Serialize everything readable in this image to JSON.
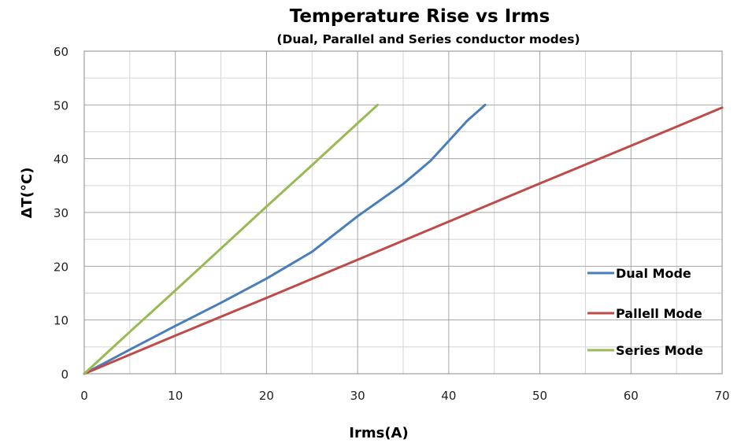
{
  "chart_data": {
    "type": "line",
    "title": "Temperature Rise vs Irms",
    "subtitle": "(Dual, Parallel and Series conductor modes)",
    "xlabel": "Irms(A)",
    "ylabel": "ΔT(°C)",
    "xlim": [
      0,
      70
    ],
    "ylim": [
      0,
      60
    ],
    "x_ticks": [
      0,
      10,
      20,
      30,
      40,
      50,
      60,
      70
    ],
    "y_ticks": [
      0,
      10,
      20,
      30,
      40,
      50,
      60
    ],
    "x_tick_labels": [
      "0",
      "10",
      "20",
      "30",
      "40",
      "50",
      "60",
      "70"
    ],
    "y_tick_labels": [
      "0",
      "10",
      "20",
      "30",
      "40",
      "50",
      "60"
    ],
    "grid": true,
    "minor_grid": true,
    "legend_position": "right",
    "series": [
      {
        "name": "Dual Mode",
        "color": "#4a7ebb",
        "x": [
          0,
          5,
          10,
          15,
          20,
          25,
          30,
          35,
          38,
          40,
          42,
          44
        ],
        "y": [
          0,
          4.5,
          8.9,
          13.2,
          17.7,
          22.7,
          29.3,
          35.3,
          39.6,
          43.3,
          47.0,
          50.0
        ]
      },
      {
        "name": "Pallell Mode",
        "color": "#be4b48",
        "x": [
          0,
          10,
          20,
          30,
          40,
          50,
          60,
          70
        ],
        "y": [
          0,
          7.1,
          14.1,
          21.2,
          28.3,
          35.4,
          42.4,
          49.5
        ]
      },
      {
        "name": "Series Mode",
        "color": "#98b954",
        "x": [
          0,
          5,
          10,
          15,
          20,
          25,
          30,
          32.2
        ],
        "y": [
          0,
          7.8,
          15.5,
          23.3,
          31.1,
          38.8,
          46.6,
          50.0
        ]
      }
    ]
  }
}
